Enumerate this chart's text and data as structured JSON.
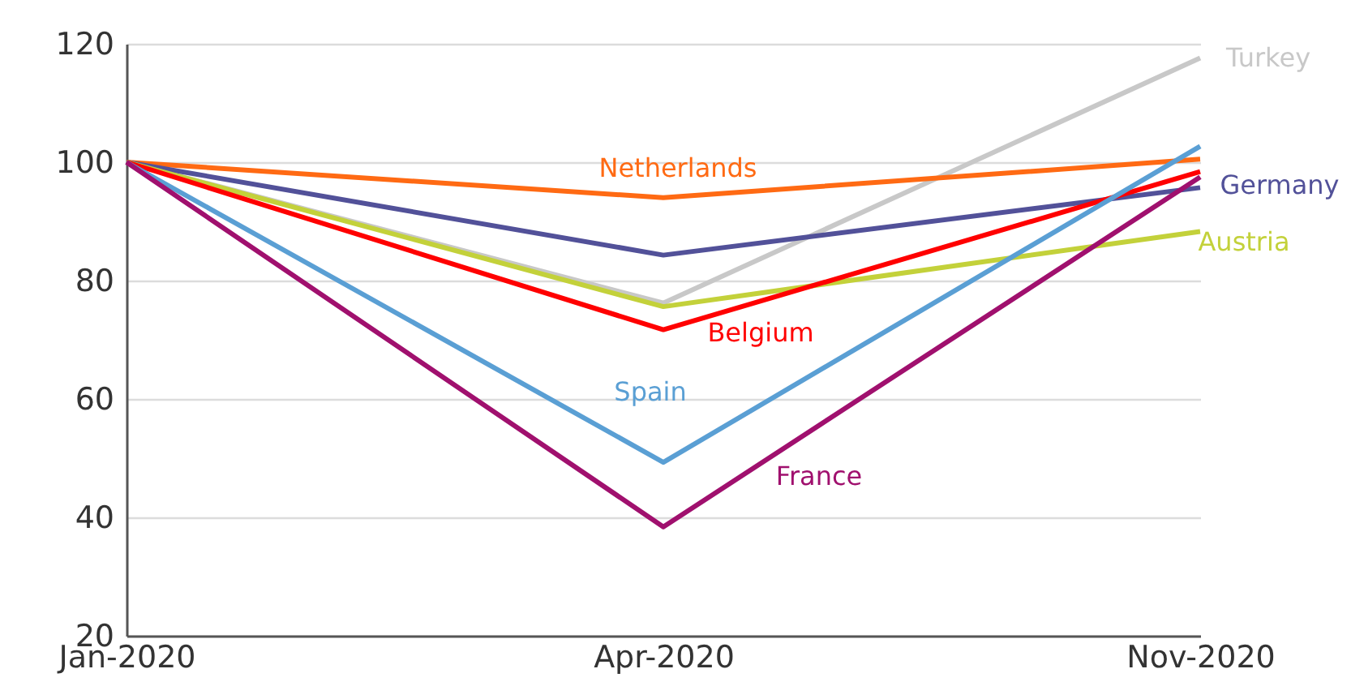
{
  "chart_data": {
    "type": "line",
    "categories": [
      "Jan-2020",
      "Apr-2020",
      "Nov-2020"
    ],
    "ylim": [
      20,
      120
    ],
    "yticks": [
      20,
      40,
      60,
      80,
      100,
      120
    ],
    "grid": "y",
    "series": [
      {
        "name": "Turkey",
        "color": "#c8c8c8",
        "values": [
          100,
          76.2,
          117.6
        ]
      },
      {
        "name": "Netherlands",
        "color": "#ff6a13",
        "values": [
          100,
          94,
          100.5
        ]
      },
      {
        "name": "Germany",
        "color": "#525199",
        "values": [
          100,
          84.3,
          95.7
        ]
      },
      {
        "name": "Austria",
        "color": "#c3d13a",
        "values": [
          100,
          75.6,
          88.3
        ]
      },
      {
        "name": "Belgium",
        "color": "#ff0000",
        "values": [
          100,
          71.7,
          98.4
        ]
      },
      {
        "name": "Spain",
        "color": "#5a9fd4",
        "values": [
          100,
          49.3,
          102.7
        ]
      },
      {
        "name": "France",
        "color": "#a0106e",
        "values": [
          100,
          38.4,
          97.5
        ]
      }
    ]
  }
}
